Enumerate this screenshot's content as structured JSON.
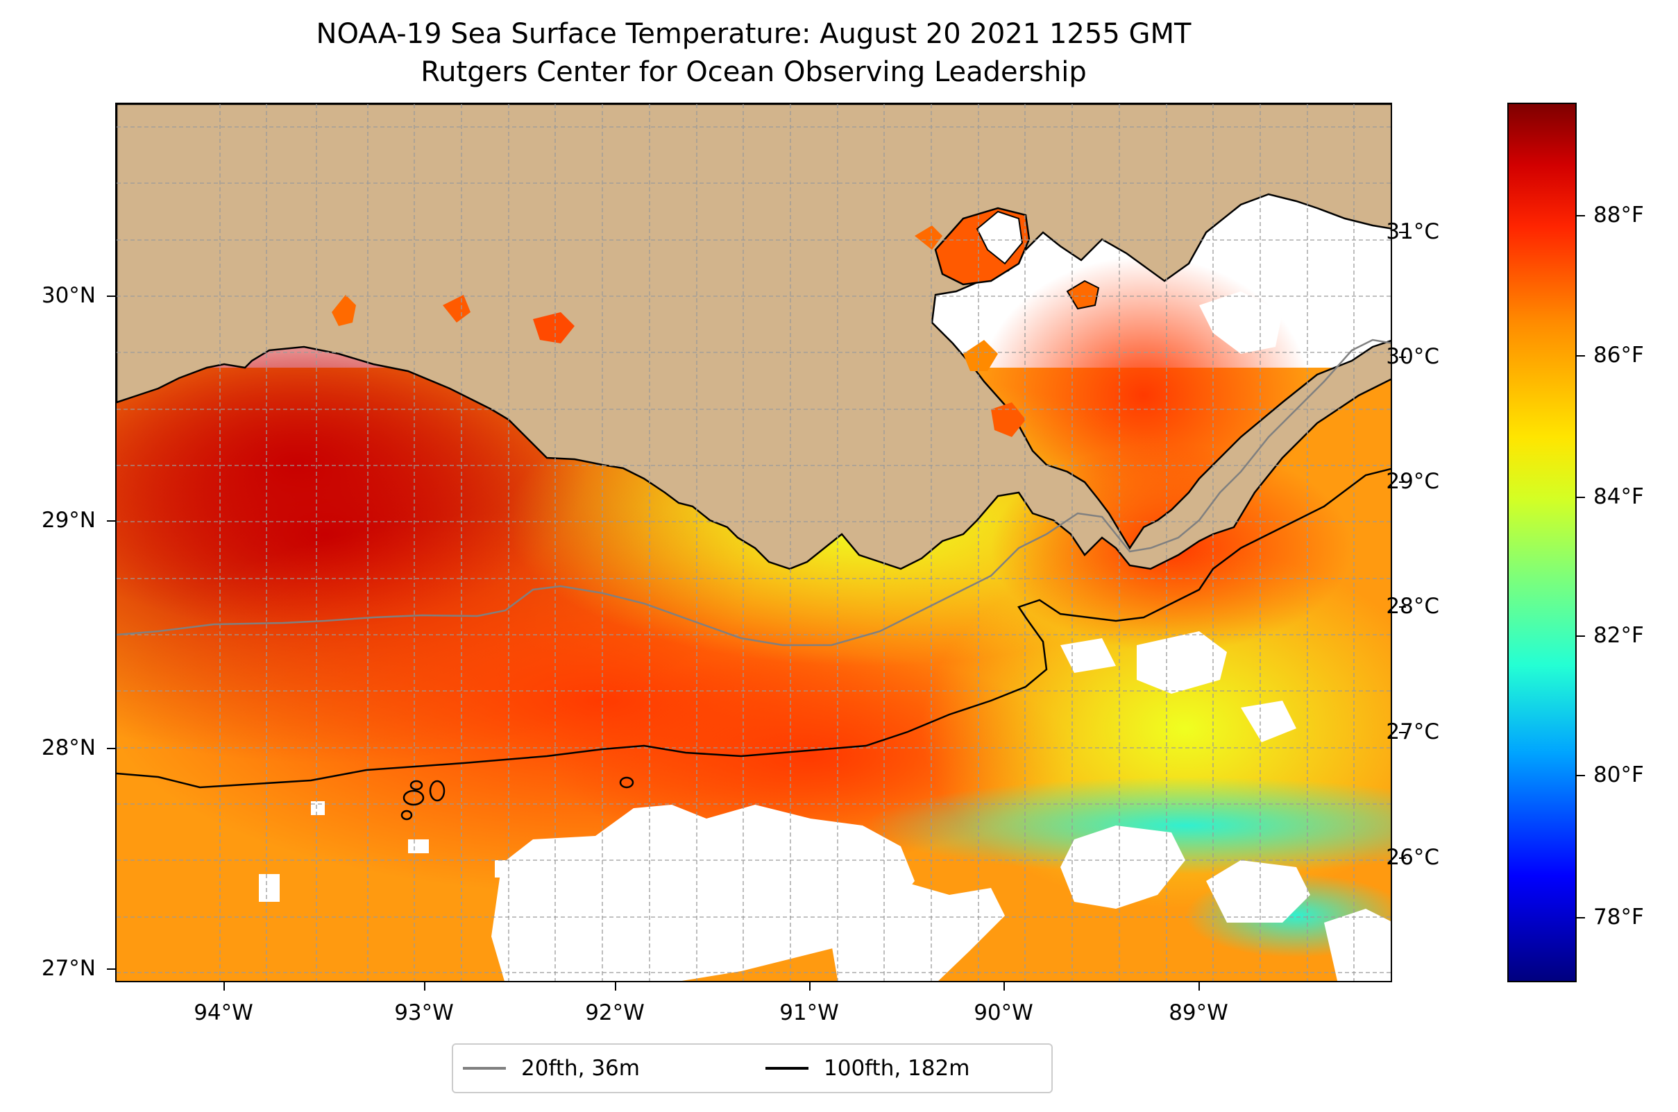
{
  "title": {
    "line1": "NOAA-19 Sea Surface Temperature: August 20 2021 1255 GMT",
    "line2": "Rutgers Center for Ocean Observing Leadership"
  },
  "map": {
    "lon_range": [
      -94.53,
      -88.2
    ],
    "lat_range": [
      26.93,
      30.83
    ],
    "lon_ticks": [
      "94°W",
      "93°W",
      "92°W",
      "91°W",
      "90°W",
      "89°W"
    ],
    "lat_ticks": [
      "27°N",
      "28°N",
      "29°N",
      "30°N"
    ],
    "grid": "dashed gray, minor 0.25°",
    "land_color": "#d2b48c",
    "no_data_color": "#ffffff",
    "colormap": "jet"
  },
  "colorbar": {
    "celsius_labels": [
      "26°C",
      "27°C",
      "28°C",
      "29°C",
      "30°C",
      "31°C"
    ],
    "fahrenheit_labels": [
      "78°F",
      "80°F",
      "82°F",
      "84°F",
      "86°F",
      "88°F"
    ]
  },
  "legend": {
    "items": [
      {
        "label": "20fth, 36m",
        "color": "#808080"
      },
      {
        "label": "100fth, 182m",
        "color": "#000000"
      }
    ]
  }
}
